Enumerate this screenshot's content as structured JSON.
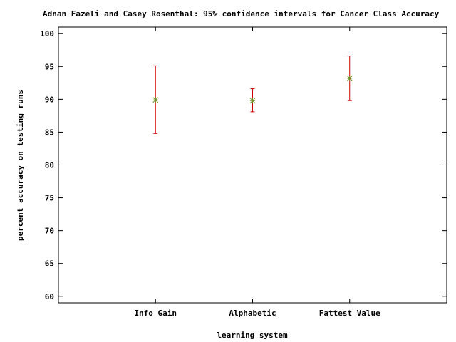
{
  "chart_data": {
    "type": "errorbar",
    "title": "Adnan Fazeli and Casey Rosenthal: 95% confidence intervals for Cancer Class Accuracy",
    "xlabel": "learning system",
    "ylabel": "percent accuracy on testing runs",
    "categories": [
      "Info Gain",
      "Alphabetic",
      "Fattest Value"
    ],
    "x_positions": [
      1,
      2,
      3
    ],
    "xlim": [
      0,
      4
    ],
    "ylim": [
      59,
      101
    ],
    "yticks": [
      60,
      65,
      70,
      75,
      80,
      85,
      90,
      95,
      100
    ],
    "series": [
      {
        "values": [
          89.9,
          89.8,
          93.2
        ],
        "lower": [
          84.8,
          88.1,
          89.8
        ],
        "upper": [
          95.1,
          91.6,
          96.6
        ]
      }
    ],
    "grid": false,
    "legend": "none",
    "colors": {
      "errorbar": "#cc0000",
      "marker": "#6b8e23",
      "axis": "#000000"
    }
  }
}
